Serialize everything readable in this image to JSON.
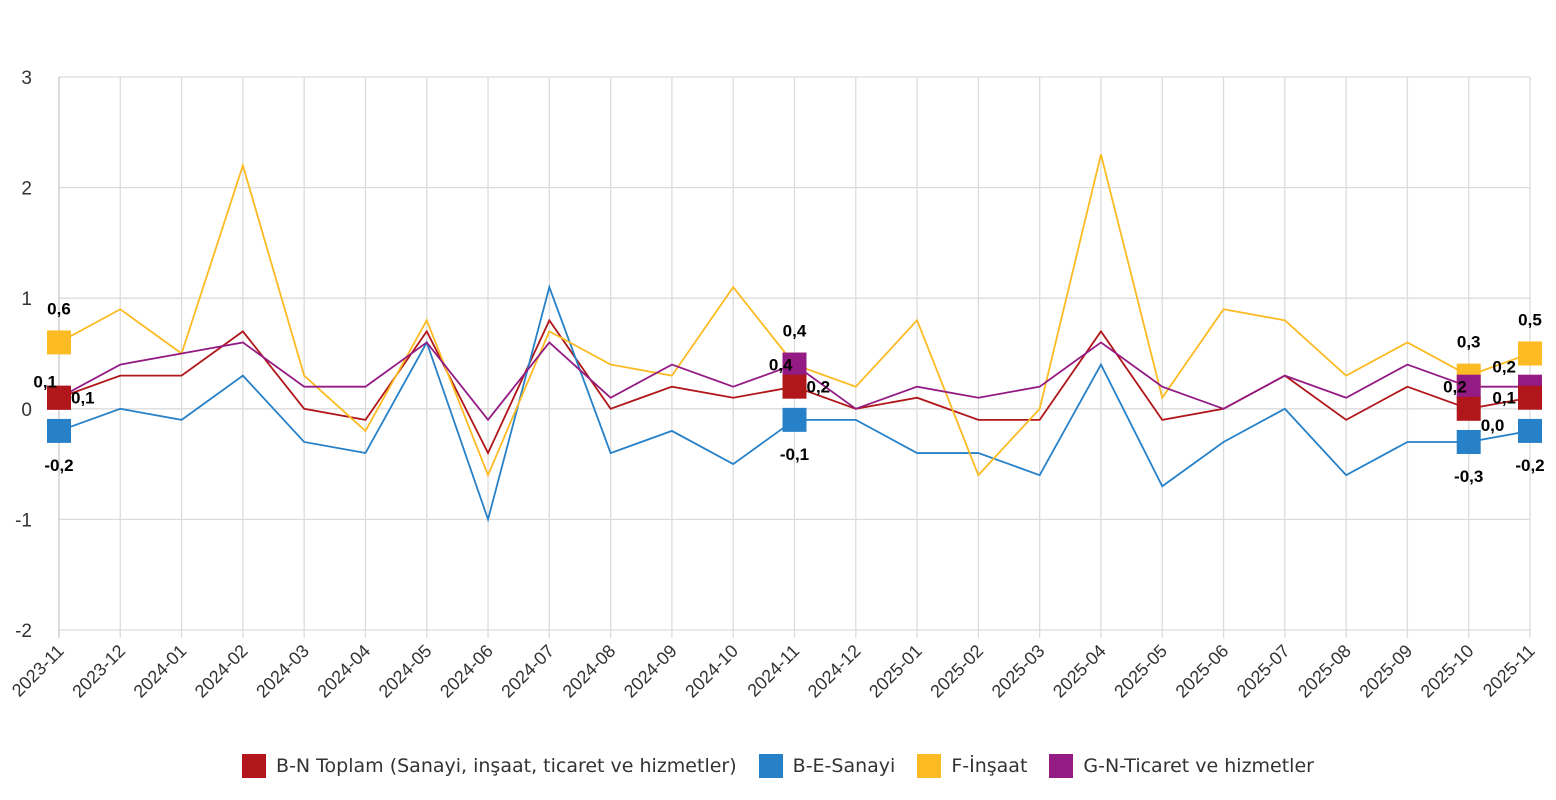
{
  "chart_data": {
    "type": "line",
    "x": [
      "2023-11",
      "2023-12",
      "2024-01",
      "2024-02",
      "2024-03",
      "2024-04",
      "2024-05",
      "2024-06",
      "2024-07",
      "2024-08",
      "2024-09",
      "2024-10",
      "2024-11",
      "2024-12",
      "2025-01",
      "2025-02",
      "2025-03",
      "2025-04",
      "2025-05",
      "2025-06",
      "2025-07",
      "2025-08",
      "2025-09",
      "2025-10",
      "2025-11"
    ],
    "ylim": [
      -2,
      3
    ],
    "yticks": [
      -2,
      -1,
      0,
      1,
      2,
      3
    ],
    "ytick_labels": [
      "-2",
      "-1",
      "0",
      "1",
      "2",
      "3"
    ],
    "grid": true,
    "legend_position": "bottom",
    "highlighted_points": [
      "2023-11",
      "2024-11",
      "2025-10",
      "2025-11"
    ],
    "series": [
      {
        "name": "B-N Toplam (Sanayi, inşaat, ticaret ve hizmetler)",
        "color": "#b0161a",
        "values": [
          0.1,
          0.3,
          0.3,
          0.7,
          0.0,
          -0.1,
          0.7,
          -0.4,
          0.8,
          0.0,
          0.2,
          0.1,
          0.2,
          0.0,
          0.1,
          -0.1,
          -0.1,
          0.7,
          -0.1,
          0.0,
          0.3,
          -0.1,
          0.2,
          0.0,
          0.1
        ]
      },
      {
        "name": "B-E-Sanayi",
        "color": "#2781c8",
        "values": [
          -0.2,
          0.0,
          -0.1,
          0.3,
          -0.3,
          -0.4,
          0.6,
          -1.0,
          1.1,
          -0.4,
          -0.2,
          -0.5,
          -0.1,
          -0.1,
          -0.4,
          -0.4,
          -0.6,
          0.4,
          -0.7,
          -0.3,
          0.0,
          -0.6,
          -0.3,
          -0.3,
          -0.2
        ]
      },
      {
        "name": "F-İnşaat",
        "color": "#fdbb23",
        "values": [
          0.6,
          0.9,
          0.5,
          2.2,
          0.3,
          -0.2,
          0.8,
          -0.6,
          0.7,
          0.4,
          0.3,
          1.1,
          0.4,
          0.2,
          0.8,
          -0.6,
          0.0,
          2.3,
          0.1,
          0.9,
          0.8,
          0.3,
          0.6,
          0.3,
          0.5
        ]
      },
      {
        "name": "G-N-Ticaret ve hizmetler",
        "color": "#931b83",
        "values": [
          0.1,
          0.4,
          0.5,
          0.6,
          0.2,
          0.2,
          0.6,
          -0.1,
          0.6,
          0.1,
          0.4,
          0.2,
          0.4,
          0.0,
          0.2,
          0.1,
          0.2,
          0.6,
          0.2,
          0.0,
          0.3,
          0.1,
          0.4,
          0.2,
          0.2
        ]
      }
    ],
    "data_labels": [
      {
        "series": 2,
        "x": "2023-11",
        "text": "0,6",
        "pos": "above"
      },
      {
        "series": 0,
        "x": "2023-11",
        "text": "0,1",
        "pos": "left"
      },
      {
        "series": 3,
        "x": "2023-11",
        "text": "0,1",
        "pos": "right"
      },
      {
        "series": 1,
        "x": "2023-11",
        "text": "-0,2",
        "pos": "below"
      },
      {
        "series": 2,
        "x": "2024-11",
        "text": "0,4",
        "pos": "above"
      },
      {
        "series": 3,
        "x": "2024-11",
        "text": "0,4",
        "pos": "left"
      },
      {
        "series": 0,
        "x": "2024-11",
        "text": "0,2",
        "pos": "right"
      },
      {
        "series": 1,
        "x": "2024-11",
        "text": "-0,1",
        "pos": "below"
      },
      {
        "series": 2,
        "x": "2025-10",
        "text": "0,3",
        "pos": "above"
      },
      {
        "series": 3,
        "x": "2025-10",
        "text": "0,2",
        "pos": "left"
      },
      {
        "series": 0,
        "x": "2025-10",
        "text": "0,0",
        "pos": "right"
      },
      {
        "series": 1,
        "x": "2025-10",
        "text": "-0,3",
        "pos": "below"
      },
      {
        "series": 2,
        "x": "2025-11",
        "text": "0,5",
        "pos": "above"
      },
      {
        "series": 0,
        "x": "2025-11",
        "text": "0,1",
        "pos": "left"
      },
      {
        "series": 3,
        "x": "2025-11",
        "text": "0,2",
        "pos": "left"
      },
      {
        "series": 1,
        "x": "2025-11",
        "text": "-0,2",
        "pos": "below"
      }
    ]
  }
}
